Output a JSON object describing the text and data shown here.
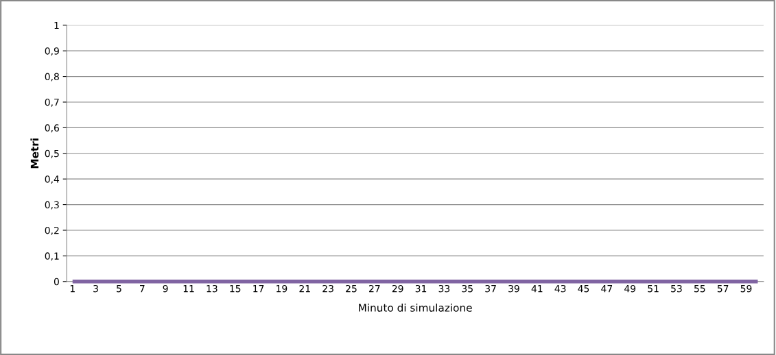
{
  "chart_data": {
    "type": "line",
    "xlabel": "Minuto di simulazione",
    "ylabel": "Metri",
    "categories": [
      "1",
      null,
      "3",
      null,
      "5",
      null,
      "7",
      null,
      "9",
      null,
      "11",
      null,
      "13",
      null,
      "15",
      null,
      "17",
      null,
      "19",
      null,
      "21",
      null,
      "23",
      null,
      "25",
      null,
      "27",
      null,
      "29",
      null,
      "31",
      null,
      "33",
      null,
      "35",
      null,
      "37",
      null,
      "39",
      null,
      "41",
      null,
      "43",
      null,
      "45",
      null,
      "47",
      null,
      "49",
      null,
      "51",
      null,
      "53",
      null,
      "55",
      null,
      "57",
      null,
      "59",
      null
    ],
    "series": [
      {
        "color": "#8064a2",
        "values": [
          0,
          0,
          0,
          0,
          0,
          0,
          0,
          0,
          0,
          0,
          0,
          0,
          0,
          0,
          0,
          0,
          0,
          0,
          0,
          0,
          0,
          0,
          0,
          0,
          0,
          0,
          0,
          0,
          0,
          0,
          0,
          0,
          0,
          0,
          0,
          0,
          0,
          0,
          0,
          0,
          0,
          0,
          0,
          0,
          0,
          0,
          0,
          0,
          0,
          0,
          0,
          0,
          0,
          0,
          0,
          0,
          0,
          0,
          0,
          0
        ]
      }
    ],
    "ylim": [
      0,
      1
    ],
    "yticks": [
      0,
      {
        "value": 0.1,
        "label": "0,1"
      },
      {
        "value": 0.2,
        "label": "0,2"
      },
      {
        "value": 0.3,
        "label": "0,3"
      },
      {
        "value": 0.4,
        "label": "0,4"
      },
      {
        "value": 0.5,
        "label": "0,5"
      },
      {
        "value": 0.6,
        "label": "0,6"
      },
      {
        "value": 0.7,
        "label": "0,7"
      },
      {
        "value": 0.8,
        "label": "0,8"
      },
      {
        "value": 0.9,
        "label": "0,9"
      },
      1
    ],
    "grid": "y",
    "marker": "none",
    "line_style": "solid"
  }
}
